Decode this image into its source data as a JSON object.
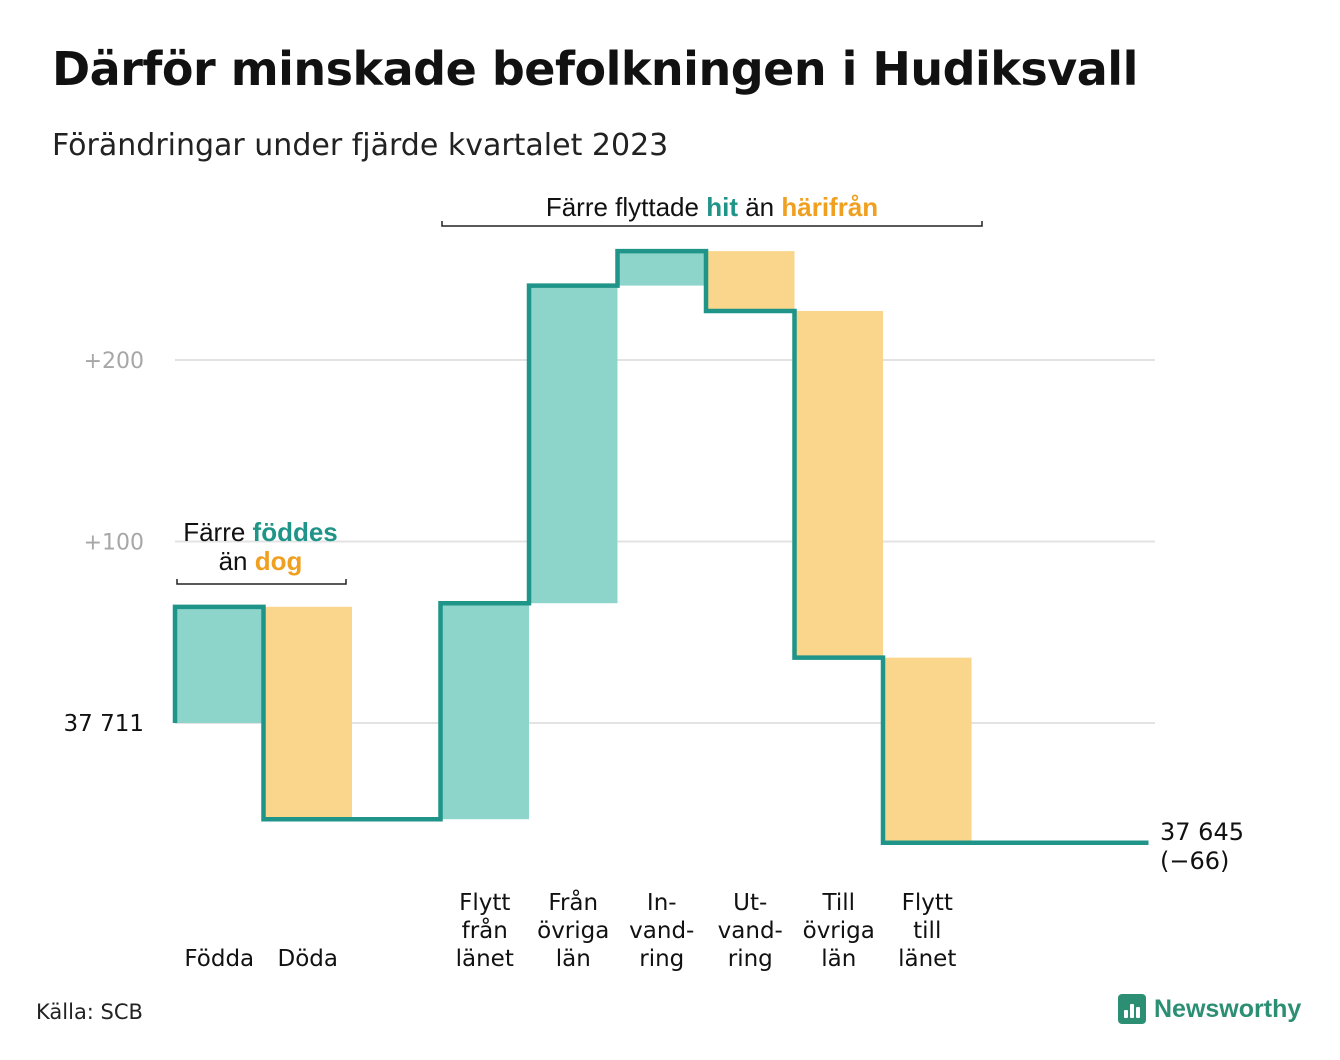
{
  "title": "Därför minskade befolkningen i Hudiksvall",
  "subtitle": "Förändringar under fjärde kvartalet 2023",
  "source": "Källa: SCB",
  "brand": "Newsworthy",
  "colors": {
    "increase": "#8dd5cb",
    "decrease": "#f9d68c",
    "line": "#1f9488",
    "grid": "#e3e3e3",
    "tick": "#a7a7a7",
    "accent_teal": "#1f9488",
    "accent_orange": "#f0a020"
  },
  "annotations": {
    "births": {
      "prefix": "Färre",
      "hi1": "föddes",
      "mid": "än",
      "hi2": "dog"
    },
    "moves": {
      "prefix": "Färre flyttade",
      "hi1": "hit",
      "mid": "än",
      "hi2": "härifrån"
    }
  },
  "end_label": {
    "value": "37 645",
    "change": "(−66)"
  },
  "chart_data": {
    "type": "waterfall",
    "start_value": 37711,
    "start_label": "37  711",
    "end_value": 37645,
    "y_ticks": [
      {
        "value": 100,
        "label": "+100"
      },
      {
        "value": 200,
        "label": "+200"
      }
    ],
    "ylim": [
      -80,
      260
    ],
    "grid": true,
    "steps": [
      {
        "label": [
          "Födda"
        ],
        "change": 64
      },
      {
        "label": [
          "Döda"
        ],
        "change": -117
      },
      {
        "label": [],
        "change": 0
      },
      {
        "label": [
          "Flytt",
          "från",
          "länet"
        ],
        "change": 119
      },
      {
        "label": [
          "Från",
          "övriga",
          "län"
        ],
        "change": 175
      },
      {
        "label": [
          "In-",
          "vand-",
          "ring"
        ],
        "change": 19
      },
      {
        "label": [
          "Ut-",
          "vand-",
          "ring"
        ],
        "change": -33
      },
      {
        "label": [
          "Till",
          "övriga",
          "län"
        ],
        "change": -191
      },
      {
        "label": [
          "Flytt",
          "till",
          "länet"
        ],
        "change": -102
      },
      {
        "label": [],
        "change": 0
      },
      {
        "label": [],
        "change": 0
      }
    ]
  }
}
